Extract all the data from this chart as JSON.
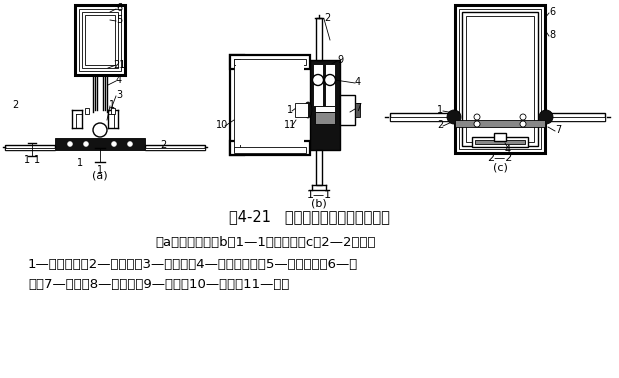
{
  "title": "图4-21   隐框玻璃幕墙密封防水构造",
  "subtitle": "（a）构造图；（b）1—1剖面图；（c）2—2剖面图",
  "legend_line1": "1—背衬材料；2—密封膏；3—固定片；4—不锈钢螺栓；5—竖框内套；6—竖",
  "legend_line2": "框；7—压板；8—内框套；9—扣板；10—横框；11—玻璃",
  "bg_color": "#ffffff",
  "title_fontsize": 10.5,
  "text_fontsize": 9.5,
  "label_fontsize": 8,
  "num_fontsize": 7
}
